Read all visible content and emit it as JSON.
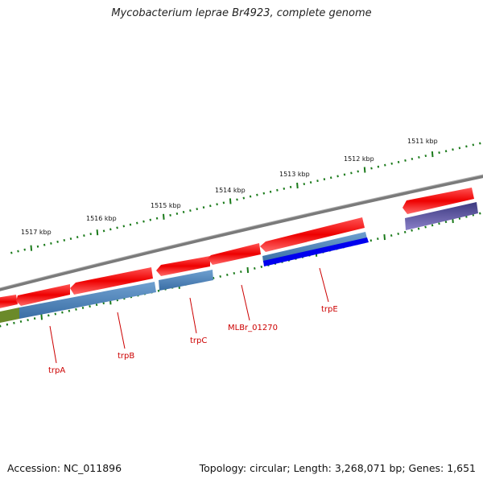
{
  "title": "Mycobacterium leprae Br4923, complete genome",
  "footer": {
    "accession": "Accession: NC_011896",
    "topology": "Topology: circular; Length: 3,268,071 bp; Genes: 1,651"
  },
  "tick_labels": [
    "1511 kbp",
    "1512 kbp",
    "1513 kbp",
    "1514 kbp",
    "1515 kbp",
    "1516 kbp",
    "1517 kbp"
  ],
  "gene_labels": [
    "trpA",
    "trpB",
    "trpC",
    "MLBr_01270",
    "trpE"
  ],
  "colors": {
    "cds_forward": "#ff0000",
    "cds_reverse": "#ff0000",
    "feature_blue": "#4a7fb8",
    "feature_dark_blue": "#0000ee",
    "feature_purple": "#4b4590",
    "feature_olive": "#6b8a2a",
    "backbone": "#808080",
    "ticks": "#1a7a1a",
    "label_red": "#cc0000"
  }
}
